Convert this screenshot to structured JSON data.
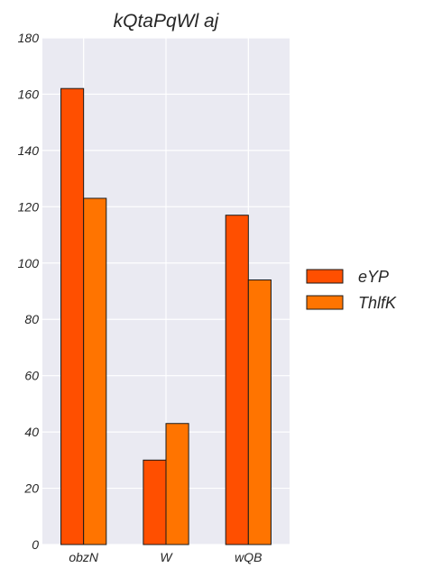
{
  "colors": {
    "plot_background": "#eaeaf2",
    "grid": "#ffffff",
    "bar_edge": "#1a1a1a",
    "series": [
      "#ff4f00",
      "#ff7400"
    ]
  },
  "chart_data": {
    "type": "bar",
    "title": "kQtaPqWl aj",
    "xlabel": "",
    "ylabel": "",
    "categories": [
      "obzN",
      "W",
      "wQB"
    ],
    "series": [
      {
        "name": "eYP",
        "values": [
          162,
          30,
          117
        ]
      },
      {
        "name": "ThlfK",
        "values": [
          123,
          43,
          94
        ]
      }
    ],
    "ylim": [
      0,
      180
    ],
    "yticks": [
      0,
      20,
      40,
      60,
      80,
      100,
      120,
      140,
      160,
      180
    ],
    "grid": true,
    "legend_position": "right"
  }
}
